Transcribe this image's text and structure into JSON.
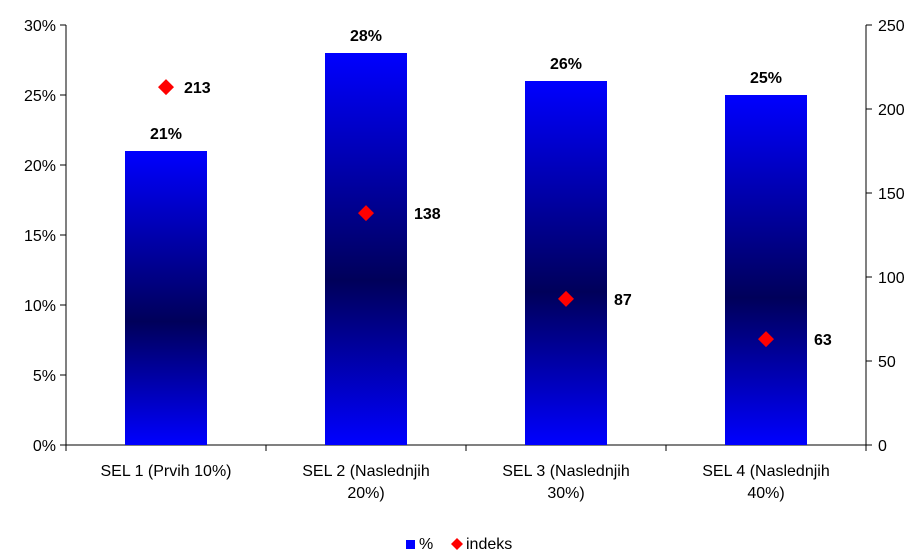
{
  "chart_data": {
    "type": "bar",
    "categories": [
      [
        "SEL 1 (Prvih 10%)"
      ],
      [
        "SEL 2 (Naslednjih",
        "20%)"
      ],
      [
        "SEL 3 (Naslednjih",
        "30%)"
      ],
      [
        "SEL 4 (Naslednjih",
        "40%)"
      ]
    ],
    "series": [
      {
        "name": "%",
        "type": "bar",
        "axis": "left",
        "values": [
          21,
          28,
          26,
          25
        ],
        "labels": [
          "21%",
          "28%",
          "26%",
          "25%"
        ],
        "color": "#0000ff",
        "gradient_center": "#00005a"
      },
      {
        "name": "indeks",
        "type": "scatter",
        "marker": "diamond",
        "axis": "right",
        "values": [
          213,
          138,
          87,
          63
        ],
        "labels": [
          "213",
          "138",
          "87",
          "63"
        ],
        "color": "#ff0000"
      }
    ],
    "y_left": {
      "min": 0,
      "max": 30,
      "ticks": [
        0,
        5,
        10,
        15,
        20,
        25,
        30
      ],
      "tick_labels": [
        "0%",
        "5%",
        "10%",
        "15%",
        "20%",
        "25%",
        "30%"
      ]
    },
    "y_right": {
      "min": 0,
      "max": 250,
      "ticks": [
        0,
        50,
        100,
        150,
        200,
        250
      ],
      "tick_labels": [
        "0",
        "50",
        "100",
        "150",
        "200",
        "250"
      ]
    },
    "grid": false,
    "legend": {
      "position": "bottom",
      "items": [
        {
          "label": "%",
          "marker": "square",
          "color": "#0000ff"
        },
        {
          "label": "indeks",
          "marker": "diamond",
          "color": "#ff0000"
        }
      ]
    }
  }
}
